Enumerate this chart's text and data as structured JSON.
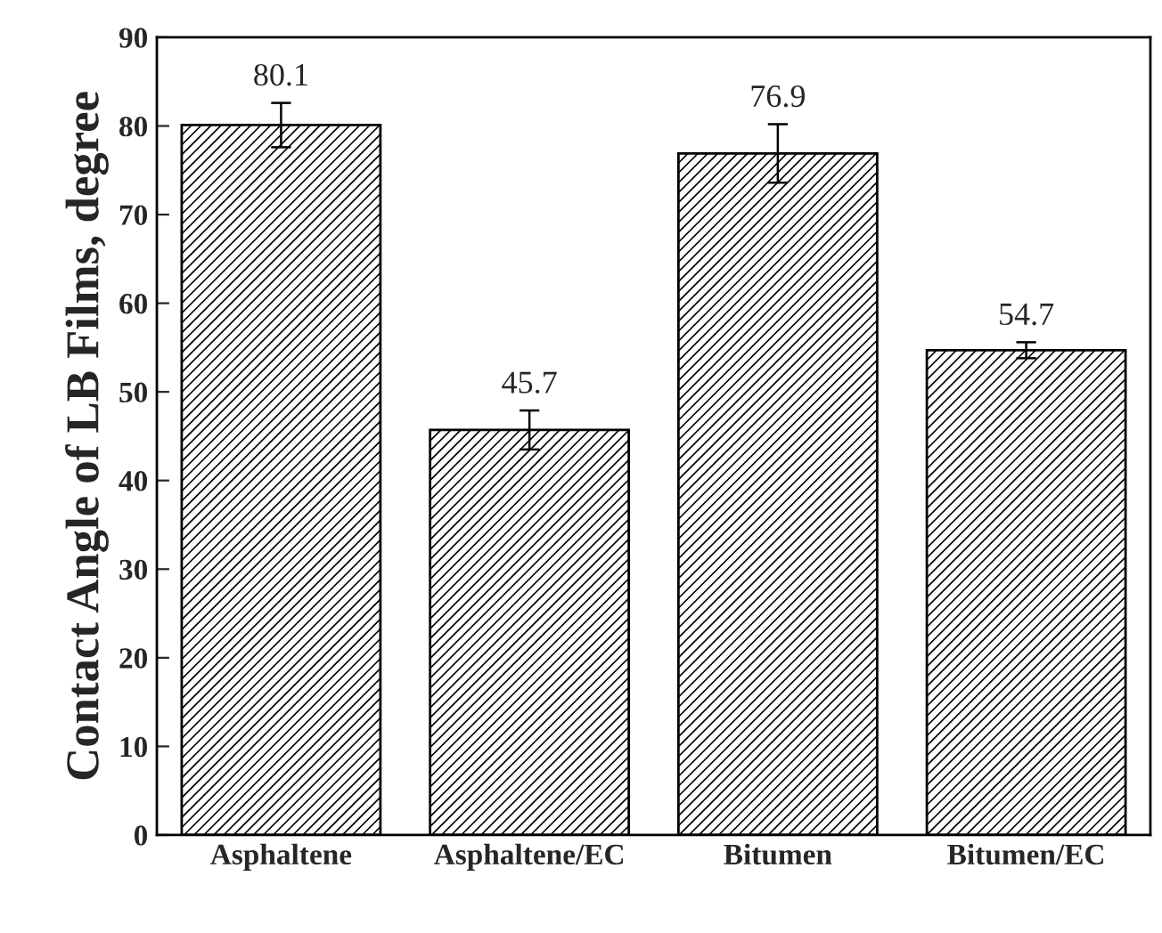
{
  "chart_data": {
    "type": "bar",
    "ylabel": "Contact Angle of LB Films, degree",
    "categories": [
      "Asphaltene",
      "Asphaltene/EC",
      "Bitumen",
      "Bitumen/EC"
    ],
    "values": [
      80.1,
      45.7,
      76.9,
      54.7
    ],
    "errors": [
      2.5,
      2.2,
      3.3,
      0.9
    ],
    "color": "#000000",
    "ylim": [
      0,
      90
    ],
    "yticks": [
      0,
      10,
      20,
      30,
      40,
      50,
      60,
      70,
      80,
      90
    ],
    "data_labels": true,
    "grid": false
  }
}
